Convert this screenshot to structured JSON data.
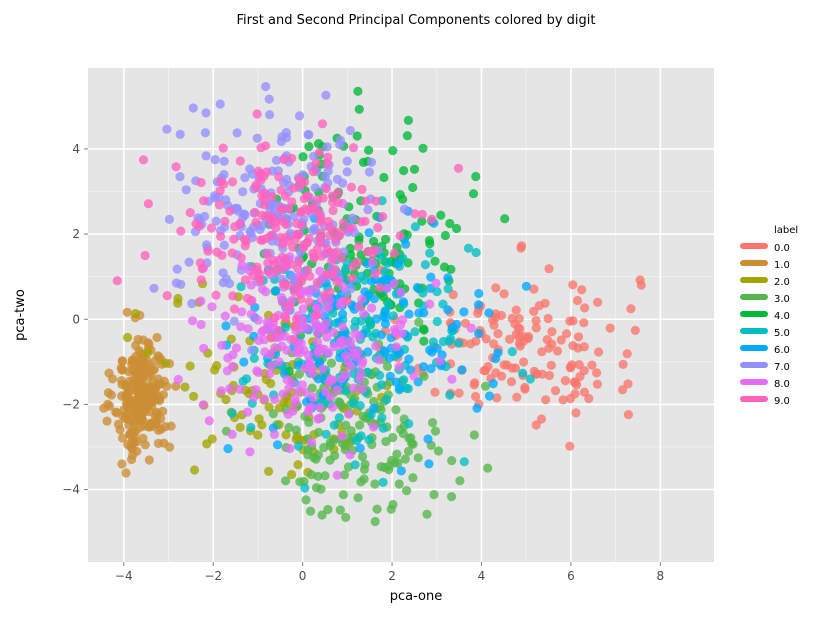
{
  "chart_data": {
    "type": "scatter",
    "title": "First and Second Principal Components colored by digit",
    "xlabel": "pca-one",
    "ylabel": "pca-two",
    "xlim": [
      -4.8,
      9.2
    ],
    "ylim": [
      -5.7,
      5.9
    ],
    "xticks": [
      -4,
      -2,
      0,
      2,
      4,
      6,
      8
    ],
    "yticks": [
      -4,
      -2,
      0,
      2,
      4
    ],
    "grid": true,
    "legend": {
      "title": "label",
      "placement": "right"
    },
    "series": [
      {
        "name": "0.0",
        "color": "#F8766D",
        "clusters": [
          {
            "cx": 4.9,
            "cy": -0.6,
            "sx": 1.3,
            "sy": 0.9,
            "n": 150
          }
        ]
      },
      {
        "name": "1.0",
        "color": "#CC8E35",
        "clusters": [
          {
            "cx": -3.6,
            "cy": -1.8,
            "sx": 0.3,
            "sy": 0.7,
            "n": 240
          }
        ]
      },
      {
        "name": "2.0",
        "color": "#A3A500",
        "clusters": [
          {
            "cx": -0.4,
            "cy": -1.6,
            "sx": 1.3,
            "sy": 1.1,
            "n": 110
          }
        ]
      },
      {
        "name": "3.0",
        "color": "#53B74C",
        "clusters": [
          {
            "cx": 1.2,
            "cy": -2.6,
            "sx": 1.0,
            "sy": 1.0,
            "n": 170
          }
        ]
      },
      {
        "name": "4.0",
        "color": "#00BA38",
        "clusters": [
          {
            "cx": 1.4,
            "cy": 2.0,
            "sx": 1.1,
            "sy": 1.3,
            "n": 150
          }
        ]
      },
      {
        "name": "5.0",
        "color": "#00BFC4",
        "clusters": [
          {
            "cx": 1.3,
            "cy": -0.6,
            "sx": 1.3,
            "sy": 1.2,
            "n": 170
          }
        ]
      },
      {
        "name": "6.0",
        "color": "#00A9FF",
        "clusters": [
          {
            "cx": 1.4,
            "cy": -0.3,
            "sx": 1.4,
            "sy": 1.2,
            "n": 150
          }
        ]
      },
      {
        "name": "7.0",
        "color": "#9590FF",
        "clusters": [
          {
            "cx": -0.6,
            "cy": 2.6,
            "sx": 1.1,
            "sy": 1.1,
            "n": 200
          }
        ]
      },
      {
        "name": "8.0",
        "color": "#E76BF3",
        "clusters": [
          {
            "cx": 0.1,
            "cy": -0.6,
            "sx": 1.2,
            "sy": 1.0,
            "n": 220
          }
        ]
      },
      {
        "name": "9.0",
        "color": "#FF62BC",
        "clusters": [
          {
            "cx": -0.3,
            "cy": 2.0,
            "sx": 1.2,
            "sy": 1.1,
            "n": 220
          }
        ]
      }
    ],
    "colors": {
      "panel_bg": "#E5E5E5",
      "grid_major": "#FFFFFF",
      "grid_minor": "#F2F2F2"
    }
  }
}
